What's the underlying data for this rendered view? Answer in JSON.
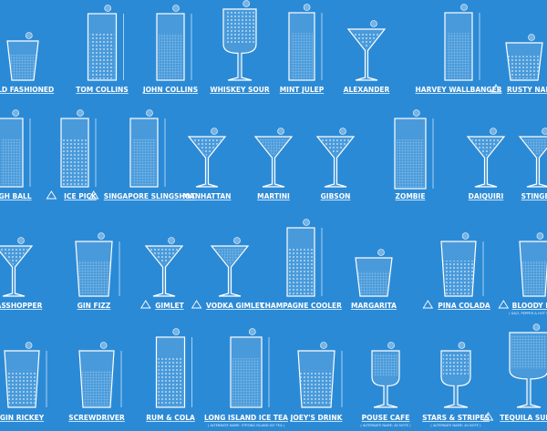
{
  "poster": {
    "background_color": "#2b8ad6",
    "line_color": "#ffffff",
    "drinks": [
      {
        "name": "OLD FASHIONED",
        "glass": "rocks"
      },
      {
        "name": "TOM COLLINS",
        "glass": "highball"
      },
      {
        "name": "JOHN COLLINS",
        "glass": "highball"
      },
      {
        "name": "WHISKEY SOUR",
        "glass": "goblet"
      },
      {
        "name": "MINT JULEP",
        "glass": "highball"
      },
      {
        "name": "ALEXANDER",
        "glass": "martini"
      },
      {
        "name": "HARVEY WALLBANGER",
        "glass": "highball"
      },
      {
        "name": "RUSTY NAIL",
        "glass": "rocks",
        "warning": true
      },
      {
        "name": "HIGH BALL",
        "glass": "highball"
      },
      {
        "name": "ICE PICK",
        "glass": "highball",
        "warning": true
      },
      {
        "name": "SINGAPORE SLINGSHOT",
        "glass": "highball",
        "warning": true
      },
      {
        "name": "MANHATTAN",
        "glass": "martini"
      },
      {
        "name": "MARTINI",
        "glass": "martini"
      },
      {
        "name": "GIBSON",
        "glass": "martini"
      },
      {
        "name": "ZOMBIE",
        "glass": "highball"
      },
      {
        "name": "DAIQUIRI",
        "glass": "martini"
      },
      {
        "name": "STINGER",
        "glass": "martini"
      },
      {
        "name": "GRASSHOPPER",
        "glass": "martini"
      },
      {
        "name": "GIN FIZZ",
        "glass": "tumbler"
      },
      {
        "name": "GIMLET",
        "glass": "martini",
        "warning": true
      },
      {
        "name": "VODKA GIMLET",
        "glass": "martini",
        "warning": true
      },
      {
        "name": "CHAMPAGNE COOLER",
        "glass": "highball"
      },
      {
        "name": "MARGARITA",
        "glass": "rocks"
      },
      {
        "name": "PINA COLADA",
        "glass": "tumbler",
        "warning": true
      },
      {
        "name": "BLOODY MARY",
        "glass": "tumbler",
        "warning": true,
        "subtitle": "( SALT, PEPPER & HOT SAUCE )"
      },
      {
        "name": "GIN RICKEY",
        "glass": "tumbler"
      },
      {
        "name": "SCREWDRIVER",
        "glass": "tumbler"
      },
      {
        "name": "RUM & COLA",
        "glass": "highball"
      },
      {
        "name": "LONG ISLAND ICE TEA",
        "glass": "highball",
        "subtitle": "( ALTERNATE NAME: STRONG ISLAND ICE TEA )"
      },
      {
        "name": "JOEY'S DRINK",
        "glass": "tumbler"
      },
      {
        "name": "POUSE CAFE",
        "glass": "goblet",
        "subtitle": "( ALTERNATE NAME: AV NOTE )"
      },
      {
        "name": "STARS & STRIPES",
        "glass": "goblet",
        "subtitle": "( ALTERNATE NAME: AV NOTE )"
      },
      {
        "name": "TEQUILA SUNRISE",
        "glass": "goblet",
        "warning": true
      }
    ]
  }
}
